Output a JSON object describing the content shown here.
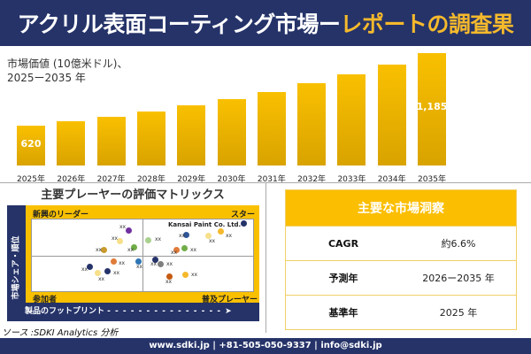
{
  "header": {
    "title_part1": "アクリル表面コーティング市場ー",
    "title_part2": "レポートの調査果"
  },
  "chart_data": {
    "type": "bar",
    "title": "市場価値 (10億米ドル)、",
    "subtitle": "2025ー2035 年",
    "categories": [
      "2025年",
      "2026年",
      "2027年",
      "2028年",
      "2029年",
      "2030年",
      "2031年",
      "2032年",
      "2033年",
      "2034年",
      "2035年"
    ],
    "values": [
      620,
      654,
      689,
      728,
      777,
      825,
      880,
      952,
      1019,
      1095,
      1185
    ],
    "data_labels": {
      "first": "620",
      "last": "1,185"
    }
  },
  "matrix": {
    "title": "主要プレーヤーの評価マトリックス",
    "q_tl": "新興のリーダー",
    "q_tr": "スター",
    "q_bl": "参加者",
    "q_br": "普及プレーヤー",
    "y_axis": "市場シェア・順位",
    "x_axis": "製品のフットプリント",
    "highlight": "Kansai Paint Co. Ltd.",
    "point_label": "xx",
    "colors": [
      "#253369",
      "#f5b92c",
      "#f7e08a",
      "#2f5597",
      "#a9d18e",
      "#7030a0",
      "#f7e08a",
      "#70ad47",
      "#c89a2c",
      "#e07b39",
      "#70ad47",
      "#e07b39",
      "#2e75b6",
      "#253369",
      "#7f7f7f",
      "#253369",
      "#253369",
      "#f7e08a",
      "#c55a11",
      "#f5b92c"
    ]
  },
  "source": "ソース :SDKI Analytics 分析",
  "insights": {
    "title": "主要な市場洞察",
    "rows": [
      {
        "k": "CAGR",
        "v": "約6.6%"
      },
      {
        "k": "予測年",
        "v": "2026ー2035 年"
      },
      {
        "k": "基準年",
        "v": "2025 年"
      }
    ]
  },
  "footer": "www.sdki.jp | +81-505-050-9337 | info@sdki.jp"
}
